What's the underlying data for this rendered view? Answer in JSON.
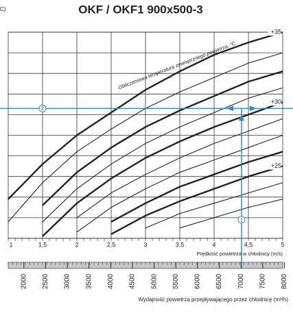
{
  "chart_data": {
    "type": "line",
    "title": "OKF / OKF1 900x500-3",
    "corner_text": "C)",
    "curve_caption": "Obliczeniowa temperatura zewnętrznego powietrza, °C",
    "xlabel": "Prędkość powietrza w chłodnicy (m/s)",
    "x2label": "Wydajność powietrza przepływającego przez chłodnicę (m³/h)",
    "x": [
      1,
      1.5,
      2,
      2.5,
      3,
      3.5,
      4,
      4.5,
      5
    ],
    "xlim": [
      1,
      5
    ],
    "xticks": [
      1,
      {
        "value": 1.5,
        "label": "1,5"
      },
      2,
      {
        "value": 2.5,
        "label": "2,5"
      },
      3,
      {
        "value": 3.5,
        "label": "3,5"
      },
      4,
      {
        "value": 4.5,
        "label": "4,5"
      },
      5
    ],
    "ylim": [
      0,
      10
    ],
    "x2lim": [
      1640,
      7960
    ],
    "x2ticks": [
      2000,
      2500,
      3000,
      3500,
      4000,
      4500,
      5000,
      5500,
      6000,
      6500,
      7000,
      7500,
      8000
    ],
    "grid": true,
    "color": "#222222",
    "guide_color": "#2b8fd0",
    "series": [
      {
        "name": "+35",
        "bold": true,
        "values": [
          1.9,
          3.6,
          5.0,
          6.1,
          7.2,
          8.1,
          8.9,
          9.5,
          10.0
        ]
      },
      {
        "bold": false,
        "values": [
          0.8,
          2.7,
          4.2,
          5.3,
          6.3,
          7.1,
          7.8,
          8.5,
          9.0
        ]
      },
      {
        "bold": true,
        "values": [
          null,
          1.6,
          3.2,
          4.4,
          5.4,
          6.2,
          6.9,
          7.6,
          8.1
        ]
      },
      {
        "bold": false,
        "values": [
          null,
          0.8,
          2.4,
          3.6,
          4.6,
          5.4,
          6.1,
          6.8,
          7.3
        ]
      },
      {
        "name": "+30",
        "bold": true,
        "values": [
          null,
          0.1,
          1.7,
          2.9,
          3.9,
          4.7,
          5.4,
          6.0,
          6.6
        ]
      },
      {
        "bold": false,
        "values": [
          null,
          null,
          1.0,
          2.2,
          3.1,
          3.9,
          4.6,
          5.2,
          5.8
        ]
      },
      {
        "bold": false,
        "values": [
          null,
          null,
          0.3,
          1.5,
          2.4,
          3.2,
          3.8,
          4.4,
          5.0
        ]
      },
      {
        "bold": true,
        "values": [
          null,
          null,
          null,
          0.8,
          1.7,
          2.5,
          3.1,
          3.7,
          4.2
        ]
      },
      {
        "name": "+25",
        "bold": true,
        "values": [
          null,
          null,
          null,
          0.2,
          1.1,
          1.8,
          2.4,
          3.0,
          3.5
        ]
      },
      {
        "bold": false,
        "values": [
          null,
          null,
          null,
          null,
          0.5,
          1.2,
          1.7,
          2.2,
          2.7
        ]
      },
      {
        "bold": false,
        "values": [
          null,
          null,
          null,
          null,
          null,
          0.5,
          1.0,
          1.5,
          1.9
        ]
      }
    ],
    "point": {
      "x": 4.4,
      "y": 6.3
    },
    "markers": [
      {
        "label": "1",
        "x": 4.4,
        "y": 0.9
      },
      {
        "label": "2",
        "x": 1.5,
        "y": 6.3
      }
    ]
  }
}
